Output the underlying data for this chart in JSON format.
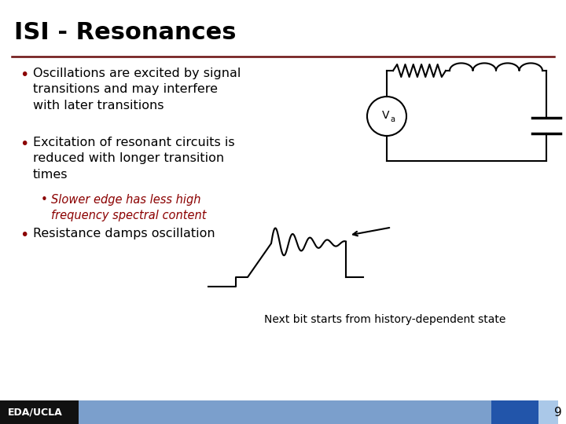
{
  "title": "ISI - Resonances",
  "title_color": "#000000",
  "title_fontsize": 22,
  "bg_color": "#ffffff",
  "bullet_color": "#8B0000",
  "text_color": "#000000",
  "bullet1": "Oscillations are excited by signal\ntransitions and may interfere\nwith later transitions",
  "bullet2": "Excitation of resonant circuits is\nreduced with longer transition\ntimes",
  "sub_bullet": "Slower edge has less high\nfrequency spectral content",
  "bullet3": "Resistance damps oscillation",
  "footer_text": "EDA/UCLA",
  "footer_bg": "#111111",
  "footer_bar1": "#7b9fcc",
  "footer_bar2": "#2255aa",
  "footer_bar3": "#aac8e8",
  "page_num": "9",
  "caption": "Next bit starts from history-dependent state",
  "divider_color": "#6b1010",
  "circuit_color": "#000000"
}
